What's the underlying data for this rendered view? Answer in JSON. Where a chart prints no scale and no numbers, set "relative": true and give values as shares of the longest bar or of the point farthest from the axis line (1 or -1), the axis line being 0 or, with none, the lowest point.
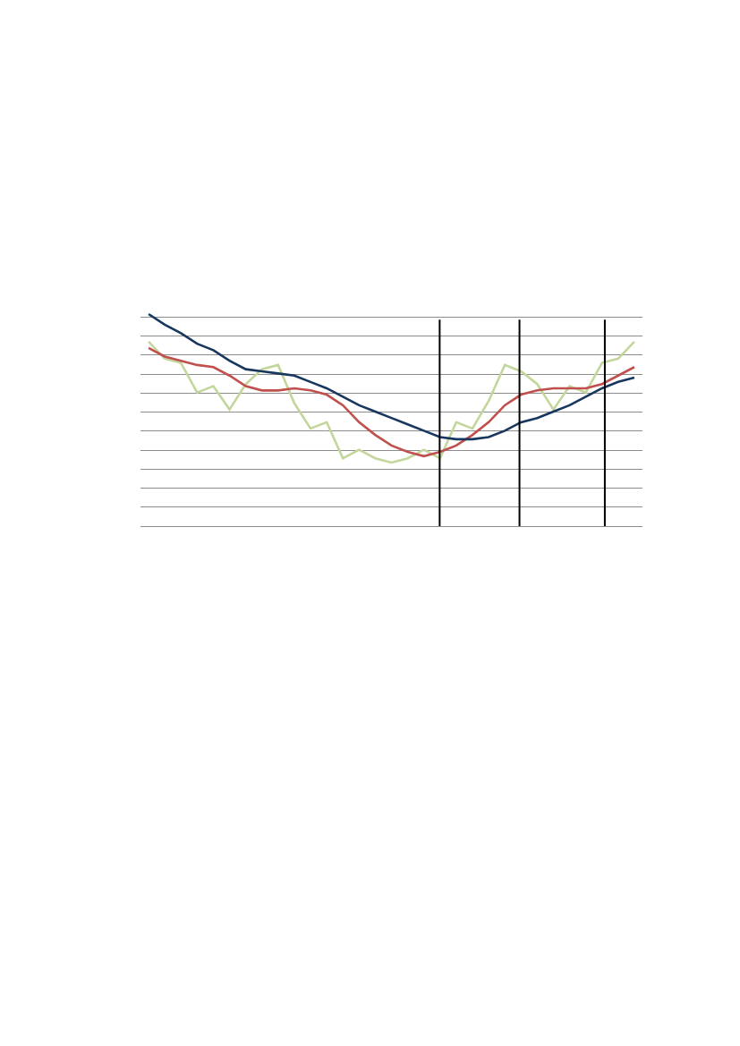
{
  "chart_data": {
    "type": "line",
    "relative": true,
    "grid": "y",
    "line_style": "solid",
    "marker": "none",
    "categories": [
      null,
      null,
      null,
      null,
      null,
      null,
      null,
      null,
      null,
      null,
      null,
      null,
      null,
      null,
      null,
      null,
      null,
      null,
      null,
      null,
      null,
      null,
      null,
      null,
      null,
      null,
      null,
      null,
      null,
      null,
      null
    ],
    "series": [
      {
        "color": "#c3d69b",
        "values": [
          0.87,
          0.79,
          0.77,
          0.63,
          0.66,
          0.55,
          0.67,
          0.74,
          0.76,
          0.58,
          0.46,
          0.49,
          0.32,
          0.36,
          0.32,
          0.3,
          0.32,
          0.36,
          0.32,
          0.49,
          0.46,
          0.59,
          0.76,
          0.73,
          0.67,
          0.55,
          0.66,
          0.63,
          0.77,
          0.79,
          0.87
        ]
      },
      {
        "color": "#c0504d",
        "values": [
          0.84,
          0.8,
          0.78,
          0.76,
          0.75,
          0.71,
          0.66,
          0.64,
          0.64,
          0.65,
          0.64,
          0.62,
          0.57,
          0.49,
          0.43,
          0.38,
          0.35,
          0.33,
          0.35,
          0.38,
          0.43,
          0.49,
          0.57,
          0.62,
          0.64,
          0.65,
          0.65,
          0.65,
          0.67,
          0.71,
          0.75
        ]
      },
      {
        "color": "#17375e",
        "values": [
          1.0,
          0.95,
          0.91,
          0.86,
          0.83,
          0.78,
          0.74,
          0.73,
          0.72,
          0.71,
          0.68,
          0.65,
          0.61,
          0.57,
          0.54,
          0.51,
          0.48,
          0.45,
          0.42,
          0.41,
          0.41,
          0.42,
          0.45,
          0.49,
          0.51,
          0.54,
          0.57,
          0.61,
          0.65,
          0.68,
          0.7
        ]
      }
    ]
  }
}
